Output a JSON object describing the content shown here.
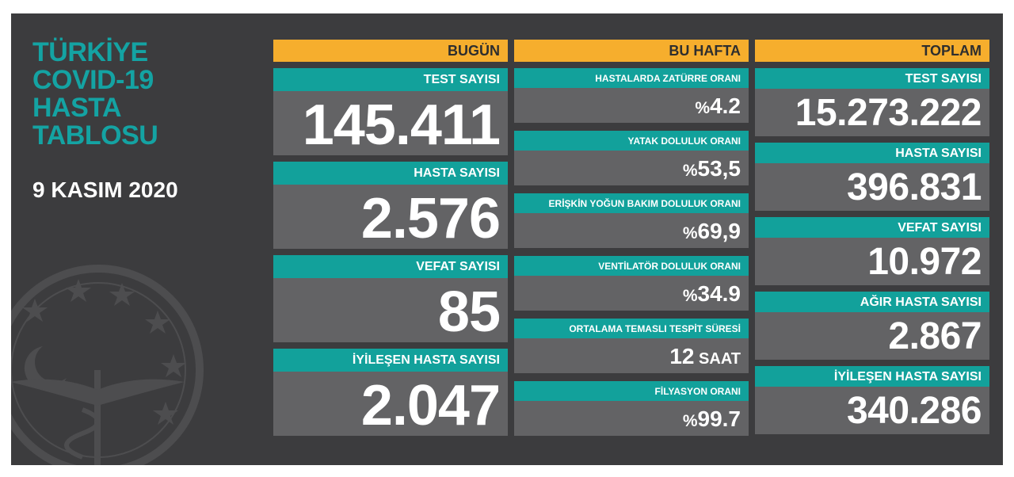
{
  "title_lines": [
    "TÜRKİYE",
    "COVID-19",
    "HASTA",
    "TABLOSU"
  ],
  "date": "9 KASIM 2020",
  "colors": {
    "board_bg": "#3c3c3e",
    "header_orange": "#f6ae2d",
    "label_teal": "#12a19b",
    "value_gray": "#636365",
    "title_teal": "#14a3a3"
  },
  "today": {
    "header": "BUGÜN",
    "cards": [
      {
        "label": "TEST SAYISI",
        "value": "145.411"
      },
      {
        "label": "HASTA SAYISI",
        "value": "2.576"
      },
      {
        "label": "VEFAT SAYISI",
        "value": "85"
      },
      {
        "label": "İYİLEŞEN HASTA SAYISI",
        "value": "2.047"
      }
    ]
  },
  "this_week": {
    "header": "BU HAFTA",
    "cards": [
      {
        "label": "HASTALARDA ZATÜRRE ORANI",
        "prefix": "%",
        "value": "4.2",
        "unit": ""
      },
      {
        "label": "YATAK DOLULUK ORANI",
        "prefix": "%",
        "value": "53,5",
        "unit": ""
      },
      {
        "label": "ERİŞKİN YOĞUN BAKIM DOLULUK ORANI",
        "prefix": "%",
        "value": "69,9",
        "unit": ""
      },
      {
        "label": "VENTİLATÖR DOLULUK ORANI",
        "prefix": "%",
        "value": "34.9",
        "unit": ""
      },
      {
        "label": "ORTALAMA TEMASLI TESPİT SÜRESİ",
        "prefix": "",
        "value": "12",
        "unit": " SAAT"
      },
      {
        "label": "FİLYASYON ORANI",
        "prefix": "%",
        "value": "99.7",
        "unit": ""
      }
    ]
  },
  "total": {
    "header": "TOPLAM",
    "cards": [
      {
        "label": "TEST SAYISI",
        "value": "15.273.222"
      },
      {
        "label": "HASTA SAYISI",
        "value": "396.831"
      },
      {
        "label": "VEFAT SAYISI",
        "value": "10.972"
      },
      {
        "label": "AĞIR HASTA SAYISI",
        "value": "2.867"
      },
      {
        "label": "İYİLEŞEN HASTA SAYISI",
        "value": "340.286"
      }
    ]
  },
  "icons": {
    "emblem": "health-ministry-emblem-icon"
  }
}
